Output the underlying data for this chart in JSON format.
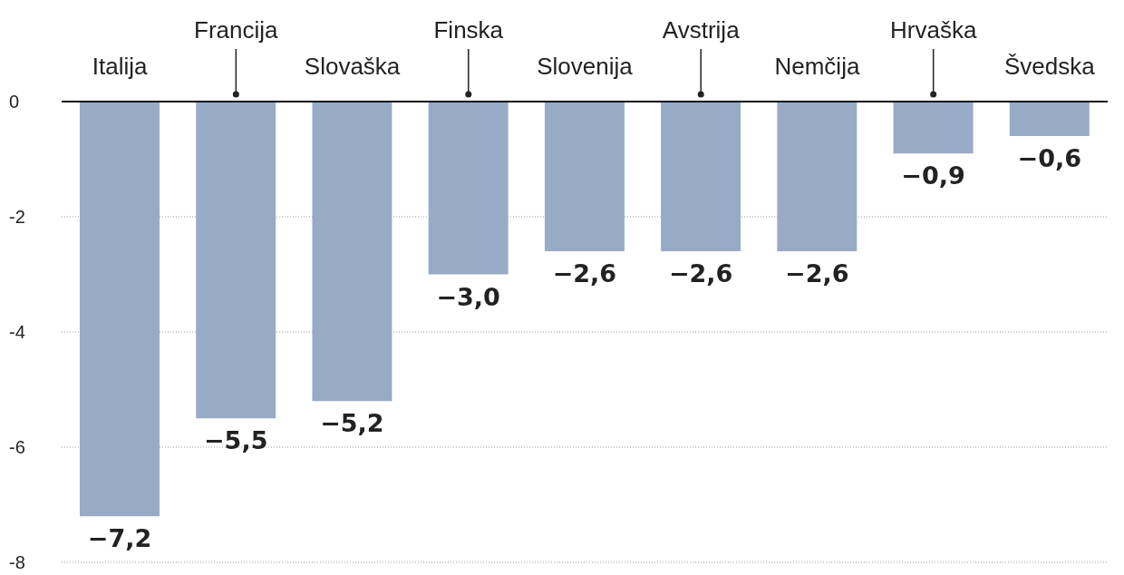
{
  "chart_data": {
    "type": "bar",
    "categories": [
      "Italija",
      "Francija",
      "Slovaška",
      "Finska",
      "Slovenija",
      "Avstrija",
      "Nemčija",
      "Hrvaška",
      "Švedska"
    ],
    "values": [
      -7.2,
      -5.5,
      -5.2,
      -3.0,
      -2.6,
      -2.6,
      -2.6,
      -0.9,
      -0.6
    ],
    "value_labels": [
      "−7,2",
      "−5,5",
      "−5,2",
      "−3,0",
      "−2,6",
      "−2,6",
      "−2,6",
      "−0,9",
      "−0,6"
    ],
    "color": "#97abc6",
    "ylim": [
      -8,
      0
    ],
    "yticks": [
      0,
      -2,
      -4,
      -6,
      -8
    ],
    "grid": "y"
  }
}
